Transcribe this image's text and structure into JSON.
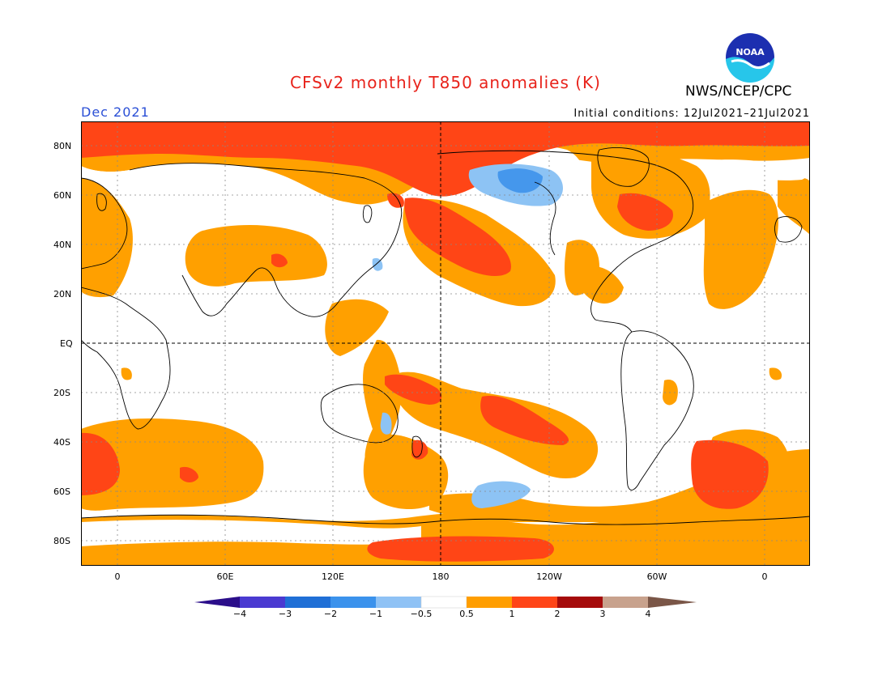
{
  "header": {
    "title": "CFSv2 monthly T850 anomalies (K)",
    "agency": "NWS/NCEP/CPC",
    "logo_text": "NOAA",
    "month": "Dec 2021",
    "initial_conditions": "Initial conditions: 12Jul2021–21Jul2021"
  },
  "axes": {
    "lat_labels": [
      "80N",
      "60N",
      "40N",
      "20N",
      "EQ",
      "20S",
      "40S",
      "60S",
      "80S"
    ],
    "lon_labels": [
      "0",
      "60E",
      "120E",
      "180",
      "120W",
      "60W",
      "0"
    ]
  },
  "legend": {
    "labels": [
      "−4",
      "−3",
      "−2",
      "−1",
      "−0.5",
      "0.5",
      "1",
      "2",
      "3",
      "4"
    ],
    "colors": [
      "#2b0e8a",
      "#4a3ad1",
      "#1f6fd6",
      "#3b92ec",
      "#8fc2f5",
      "#ffffff",
      "#ff9e00",
      "#ff4518",
      "#a50b0b",
      "#c8a28d",
      "#7a5647"
    ],
    "anomaly_colors": {
      "weak_warm": "#ffa000",
      "warm": "#ff4516",
      "weak_cool": "#8dc3f4",
      "cool": "#4597ec"
    }
  }
}
